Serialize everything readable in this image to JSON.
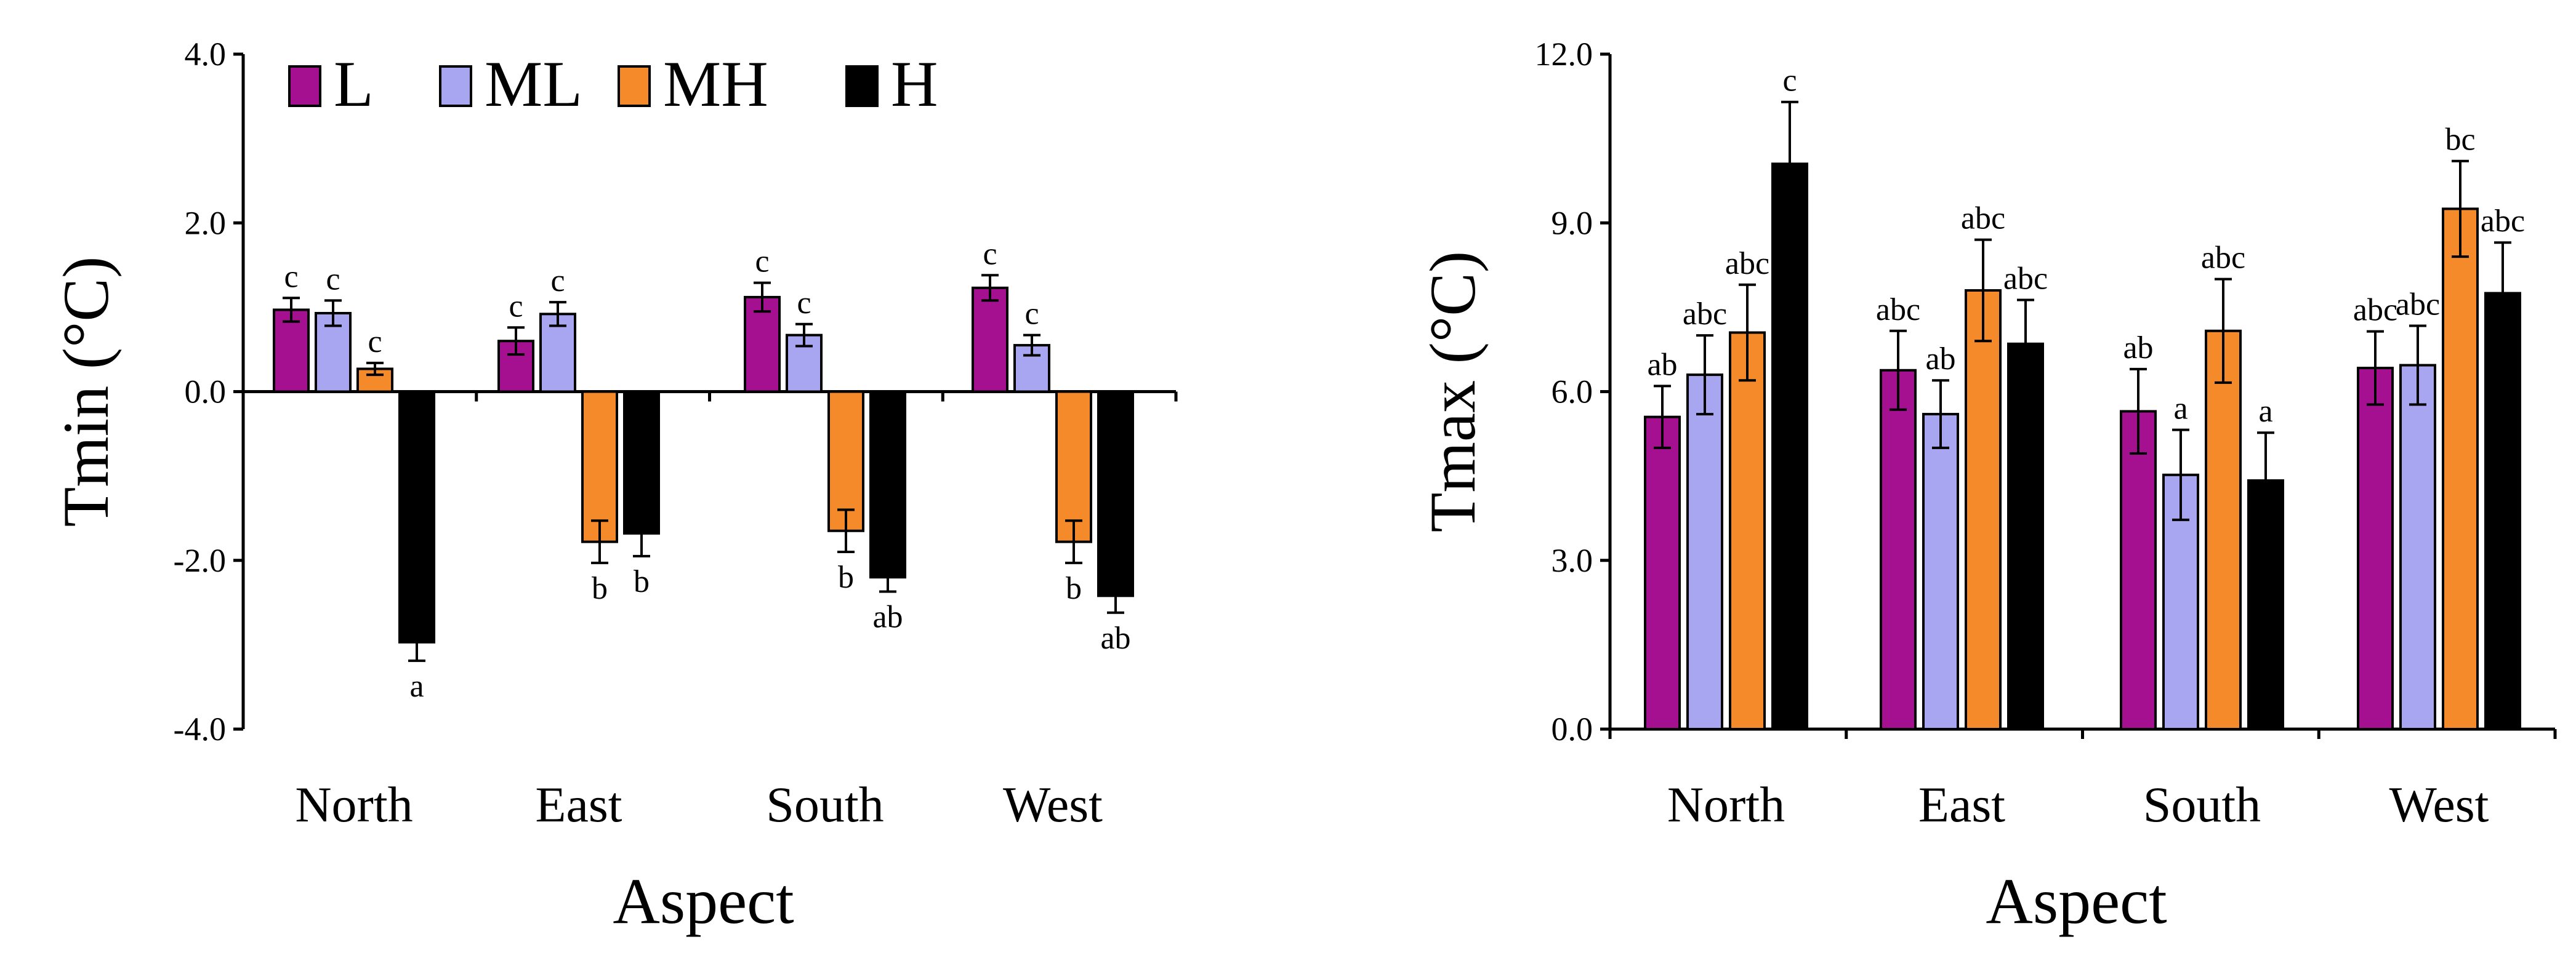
{
  "legend": [
    {
      "key": "L",
      "label": "L",
      "color": "#a4108f"
    },
    {
      "key": "ML",
      "label": "ML",
      "color": "#a8a6f0"
    },
    {
      "key": "MH",
      "label": "MH",
      "color": "#f58a2a"
    },
    {
      "key": "H",
      "label": "H",
      "color": "#000000"
    }
  ],
  "chart_data": [
    {
      "type": "bar",
      "xlabel": "Aspect",
      "ylabel": "Tmin (°C)",
      "ylim": [
        -4.0,
        4.0
      ],
      "yticks": [
        "-4.0",
        "-2.0",
        "0.0",
        "2.0",
        "4.0"
      ],
      "categories": [
        "North",
        "East",
        "South",
        "West"
      ],
      "legend_position": "top-left",
      "grid": false,
      "series": [
        {
          "name": "L",
          "values": [
            0.97,
            0.6,
            1.12,
            1.23
          ],
          "errors": [
            0.14,
            0.16,
            0.17,
            0.15
          ],
          "labels": [
            "c",
            "c",
            "c",
            "c"
          ]
        },
        {
          "name": "ML",
          "values": [
            0.93,
            0.92,
            0.67,
            0.55
          ],
          "errors": [
            0.15,
            0.14,
            0.13,
            0.12
          ],
          "labels": [
            "c",
            "c",
            "c",
            "c"
          ]
        },
        {
          "name": "MH",
          "values": [
            0.27,
            -1.78,
            -1.65,
            -1.78
          ],
          "errors": [
            0.07,
            0.25,
            0.25,
            0.25
          ],
          "labels": [
            "c",
            "b",
            "b",
            "b"
          ]
        },
        {
          "name": "H",
          "values": [
            -2.97,
            -1.68,
            -2.2,
            -2.42
          ],
          "errors": [
            0.22,
            0.27,
            0.17,
            0.2
          ],
          "labels": [
            "a",
            "b",
            "ab",
            "ab"
          ]
        }
      ]
    },
    {
      "type": "bar",
      "xlabel": "Aspect",
      "ylabel": "Tmax (°C)",
      "ylim": [
        0.0,
        12.0
      ],
      "yticks": [
        "0.0",
        "3.0",
        "6.0",
        "9.0",
        "12.0"
      ],
      "categories": [
        "North",
        "East",
        "South",
        "West"
      ],
      "grid": false,
      "series": [
        {
          "name": "L",
          "values": [
            5.55,
            6.38,
            5.65,
            6.42
          ],
          "errors": [
            0.55,
            0.7,
            0.75,
            0.65
          ],
          "labels": [
            "ab",
            "abc",
            "ab",
            "abc"
          ]
        },
        {
          "name": "ML",
          "values": [
            6.3,
            5.6,
            4.52,
            6.47
          ],
          "errors": [
            0.7,
            0.6,
            0.8,
            0.7
          ],
          "labels": [
            "abc",
            "ab",
            "a",
            "abc"
          ]
        },
        {
          "name": "MH",
          "values": [
            7.05,
            7.8,
            7.08,
            9.25
          ],
          "errors": [
            0.85,
            0.9,
            0.92,
            0.85
          ],
          "labels": [
            "abc",
            "abc",
            "abc",
            "bc"
          ]
        },
        {
          "name": "H",
          "values": [
            10.05,
            6.85,
            4.42,
            7.75
          ],
          "errors": [
            1.1,
            0.78,
            0.85,
            0.9
          ],
          "labels": [
            "c",
            "abc",
            "a",
            "abc"
          ]
        }
      ]
    }
  ]
}
